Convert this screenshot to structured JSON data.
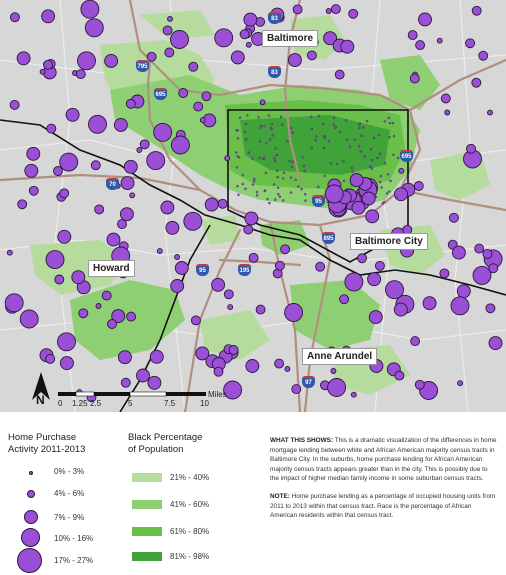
{
  "map": {
    "places": {
      "baltimore": "Baltimore",
      "baltimore_city": "Baltimore City",
      "howard": "Howard",
      "anne_arundel": "Anne Arundel"
    },
    "highways": [
      "83",
      "83",
      "795",
      "695",
      "695",
      "70",
      "95",
      "95",
      "895",
      "195",
      "97"
    ],
    "north_label": "N",
    "scale": {
      "ticks": [
        "0",
        "1.25",
        "2.5",
        "5",
        "7.5",
        "10"
      ],
      "unit": "Miles"
    }
  },
  "legend_purchase": {
    "title_line1": "Home Purchase",
    "title_line2": "Activity 2011-2013",
    "classes": [
      "0% - 3%",
      "4% - 6%",
      "7% - 9%",
      "10% - 16%",
      "17% - 27%"
    ]
  },
  "legend_black": {
    "title_line1": "Black Percentage",
    "title_line2": "of Population",
    "classes": [
      "21% - 40%",
      "41% - 60%",
      "61% - 80%",
      "81% - 98%"
    ],
    "colors": [
      "#b5dc9d",
      "#8fcf73",
      "#6abf4b",
      "#3fa33a"
    ]
  },
  "notes": {
    "what_heading": "WHAT THIS SHOWS:",
    "what_text": "This is a dramatic visualization of the differences in home mortgage lending between white and African American majority census tracts in Baltimore City. In the suburbs, home purchase lending for African American majority census tracts appears greater than in the city. This is possibly due to the impact of higher median family income in some suburban census tracts.",
    "note_heading": "NOTE:",
    "note_text": "Home purchase lending as a percentage of occupied housing units from 2011 to 2013 within that census tract. Race is the percentage of African American residents within that census tract."
  },
  "colors": {
    "circle_fill": "#9b4ed6",
    "circle_stroke": "#2a1a3a",
    "base": "#d9d9d9",
    "road": "#b08f80"
  }
}
